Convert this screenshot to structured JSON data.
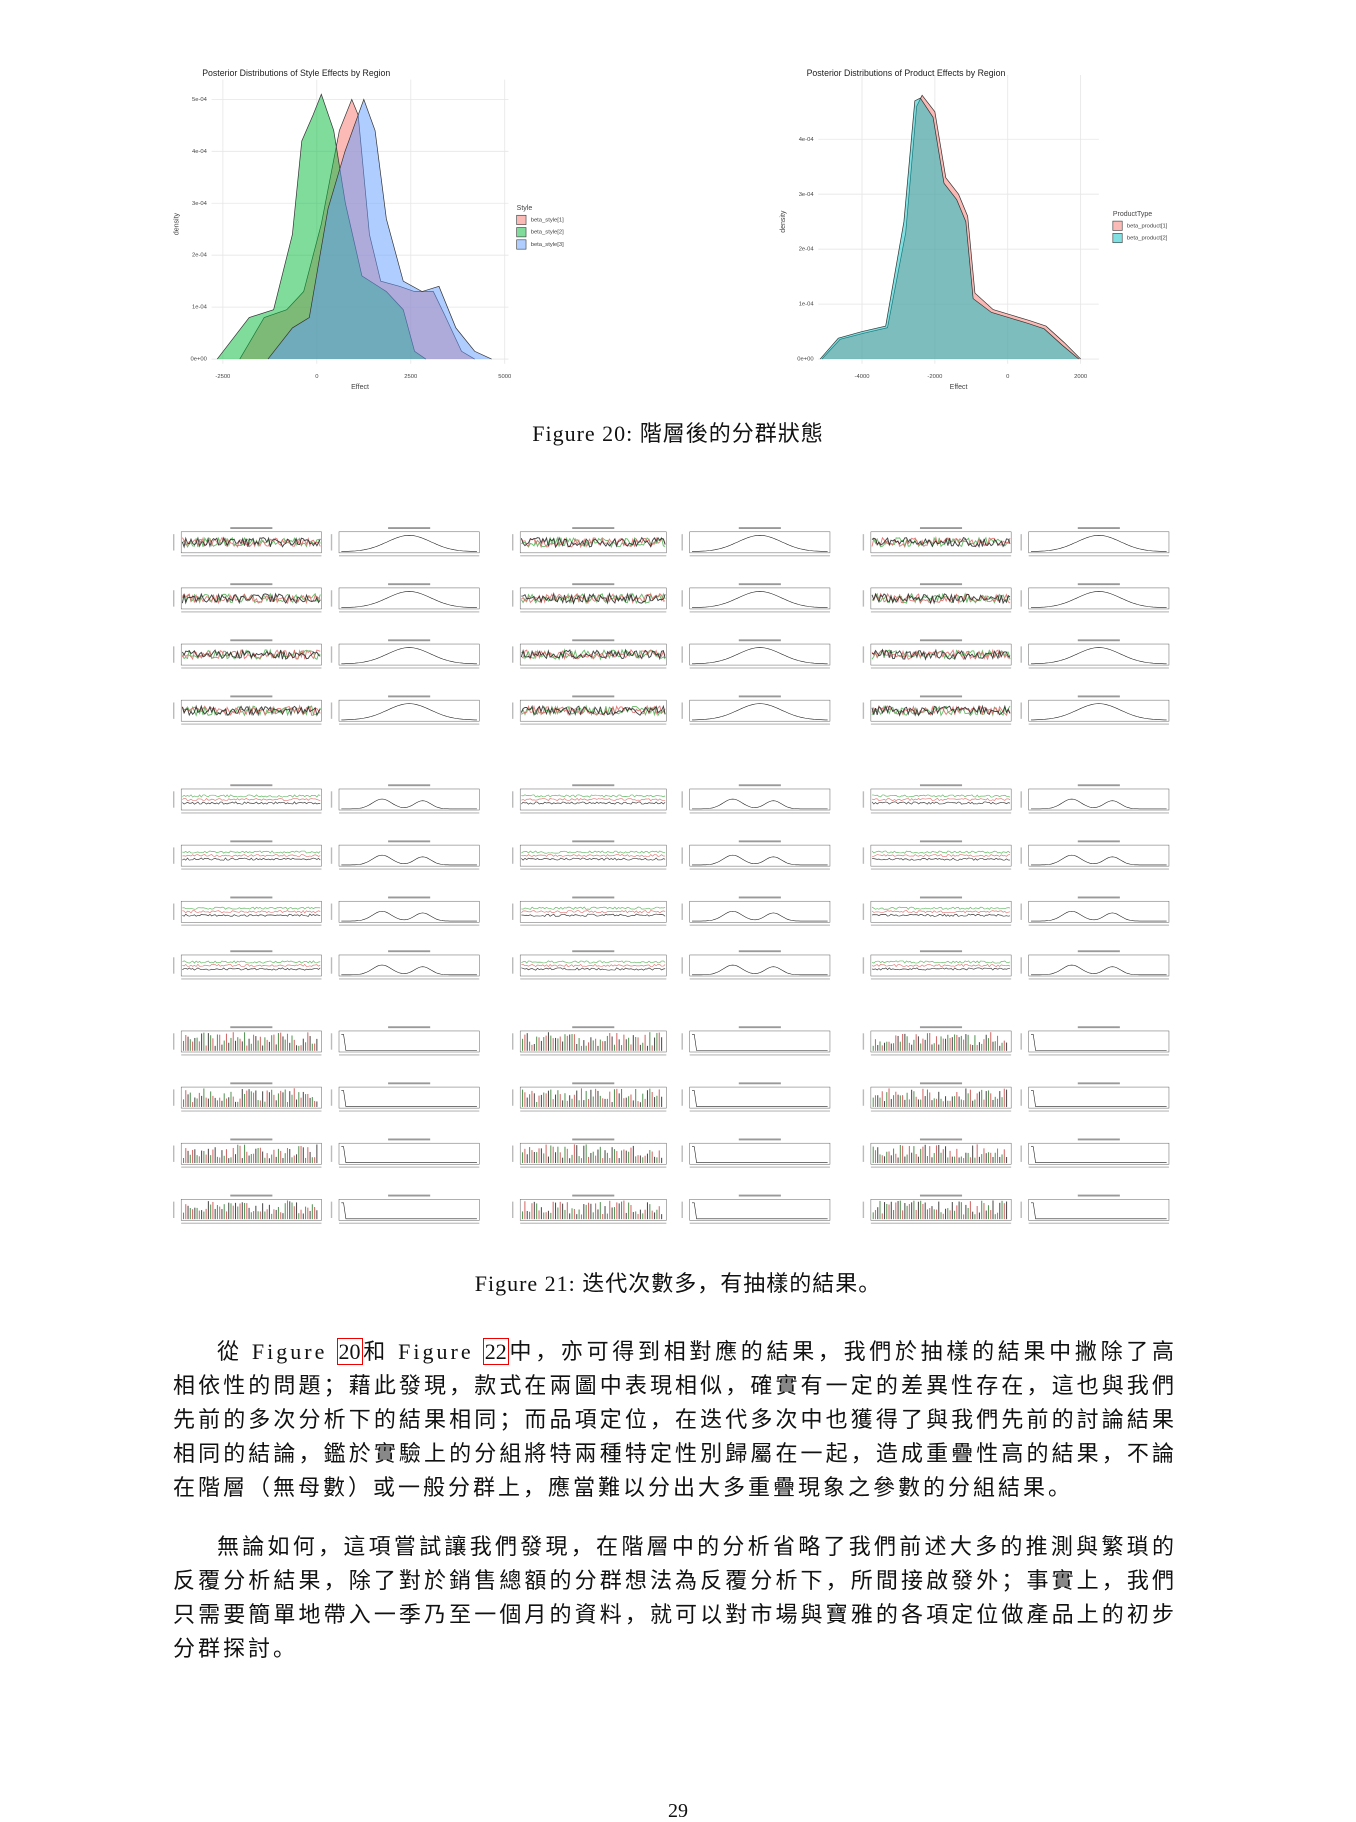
{
  "chart_data": [
    {
      "type": "area",
      "title": "Posterior Distributions of Style Effects by Region",
      "x_label": "Effect",
      "y_label": "density",
      "legend_title": "Style",
      "legend": "right",
      "grid": true,
      "xlim": [
        -2800,
        5100
      ],
      "xticks": [
        -2500,
        0,
        2500,
        5000
      ],
      "ylim": [
        0,
        0.00052
      ],
      "yticks": [
        {
          "value": 0,
          "label": "0e+00"
        },
        {
          "value": 0.0001,
          "label": "1e-04"
        },
        {
          "value": 0.0002,
          "label": "2e-04"
        },
        {
          "value": 0.0003,
          "label": "3e-04"
        },
        {
          "value": 0.0004,
          "label": "4e-04"
        },
        {
          "value": 0.0005,
          "label": "5e-04"
        }
      ],
      "series": [
        {
          "name": "beta_style[1]",
          "color": "#f8766d",
          "x": [
            -2050,
            -1400,
            -800,
            -350,
            120,
            600,
            930,
            1100,
            1400,
            1700,
            2200,
            2600,
            3100,
            3400,
            3850,
            4200
          ],
          "values": [
            0,
            8e-05,
            9.5e-05,
            0.00013,
            0.00026,
            0.00044,
            0.0005,
            0.00047,
            0.00024,
            0.00015,
            0.00014,
            0.00013,
            0.00013,
            8.5e-05,
            1.5e-05,
            0
          ]
        },
        {
          "name": "beta_style[2]",
          "color": "#00ba38",
          "x": [
            -2650,
            -1800,
            -1150,
            -650,
            -400,
            -100,
            120,
            450,
            760,
            1200,
            1850,
            2300,
            2600,
            2900
          ],
          "values": [
            0,
            8e-05,
            9.5e-05,
            0.00024,
            0.00042,
            0.00047,
            0.00051,
            0.00044,
            0.0003,
            0.00016,
            0.00013,
            9.5e-05,
            1.5e-05,
            0
          ]
        },
        {
          "name": "beta_style[3]",
          "color": "#619cff",
          "x": [
            -1300,
            -650,
            -200,
            300,
            750,
            1250,
            1550,
            1850,
            2300,
            2800,
            3250,
            3700,
            4200,
            4650
          ],
          "values": [
            0,
            6e-05,
            8e-05,
            0.00029,
            0.0004,
            0.0005,
            0.00044,
            0.00027,
            0.00015,
            0.00013,
            0.00014,
            6e-05,
            1.5e-05,
            0
          ]
        }
      ]
    },
    {
      "type": "area",
      "title": "Posterior Distributions of Product Effects by Region",
      "x_label": "Effect",
      "y_label": "density",
      "legend_title": "ProductType",
      "legend": "right",
      "grid": true,
      "xlim": [
        -5200,
        2500
      ],
      "xticks": [
        -4000,
        -2000,
        0,
        2000
      ],
      "ylim": [
        0,
        0.0005
      ],
      "yticks": [
        {
          "value": 0,
          "label": "0e+00"
        },
        {
          "value": 0.0001,
          "label": "1e-04"
        },
        {
          "value": 0.0002,
          "label": "2e-04"
        },
        {
          "value": 0.0003,
          "label": "3e-04"
        },
        {
          "value": 0.0004,
          "label": "4e-04"
        }
      ],
      "series": [
        {
          "name": "beta_product[1]",
          "color": "#f8766d",
          "x": [
            -5100,
            -4600,
            -3950,
            -3300,
            -2800,
            -2500,
            -2350,
            -2000,
            -1700,
            -1350,
            -1100,
            -900,
            -400,
            100,
            600,
            1050,
            1550,
            2000
          ],
          "values": [
            0,
            3.6e-05,
            4.7e-05,
            5.7e-05,
            0.00023,
            0.00046,
            0.00048,
            0.00045,
            0.00033,
            0.0003,
            0.00026,
            0.00012,
            9e-05,
            8e-05,
            7e-05,
            6e-05,
            3e-05,
            0
          ]
        },
        {
          "name": "beta_product[2]",
          "color": "#00bfc4",
          "x": [
            -5150,
            -4650,
            -4000,
            -3350,
            -2850,
            -2550,
            -2400,
            -2050,
            -1750,
            -1400,
            -1150,
            -950,
            -450,
            50,
            550,
            1000,
            1500,
            1950
          ],
          "values": [
            0,
            3.8e-05,
            5e-05,
            6e-05,
            0.00025,
            0.00047,
            0.000475,
            0.00044,
            0.00032,
            0.00029,
            0.00025,
            0.00011,
            8.5e-05,
            7.5e-05,
            6.5e-05,
            5.5e-05,
            2.5e-05,
            0
          ]
        }
      ]
    }
  ],
  "figure20": {
    "caption": "Figure 20: 階層後的分群狀態"
  },
  "figure21": {
    "caption": "Figure 21: 迭代次數多，有抽樣的結果。"
  },
  "paragraphs": [
    [
      "從 Figure ",
      "20",
      "和 Figure ",
      "22",
      "中，亦可得到相對應的結果，我們於抽樣的結果中撇除了高相依性的問題；藉此發現，款式在兩圖中表現相似，確實有一定的差異性存在，這也與我們先前的多次分析下的結果相同；而品項定位，在迭代多次中也獲得了與我們先前的討論結果相同的結論，鑑於實驗上的分組將特兩種特定性別歸屬在一起，造成重疊性高的結果，不論在階層（無母數）或一般分群上，應當難以分出大多重疊現象之參數的分組結果。"
    ],
    [
      "無論如何，這項嘗試讓我們發現，在階層中的分析省略了我們前述大多的推測與繁瑣的反覆分析結果，除了對於銷售總額的分群想法為反覆分析下，所間接啟發外；事實上，我們只需要簡單地帶入一季乃至一個月的資料，就可以對市場與寶雅的各項定位做產品上的初步分群探討。"
    ]
  ],
  "page_number": "29"
}
